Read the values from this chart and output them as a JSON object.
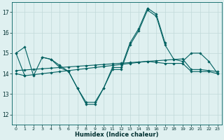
{
  "x": [
    0,
    1,
    2,
    3,
    4,
    5,
    6,
    7,
    8,
    9,
    10,
    11,
    12,
    13,
    14,
    15,
    16,
    17,
    18,
    19,
    20,
    21,
    22,
    23
  ],
  "line1": [
    15.0,
    15.3,
    13.9,
    14.8,
    14.7,
    14.4,
    14.1,
    13.3,
    12.6,
    12.6,
    13.3,
    14.3,
    14.3,
    15.5,
    16.2,
    17.2,
    16.9,
    15.5,
    null,
    null,
    null,
    null,
    null,
    null
  ],
  "line2": [
    15.0,
    13.9,
    null,
    14.8,
    14.7,
    14.3,
    14.1,
    13.3,
    12.5,
    12.5,
    13.3,
    14.2,
    14.2,
    15.4,
    16.1,
    17.1,
    16.8,
    15.4,
    14.7,
    14.6,
    15.0,
    15.0,
    14.6,
    14.0
  ],
  "line3": [
    14.0,
    13.9,
    13.95,
    14.0,
    14.05,
    14.1,
    14.15,
    14.2,
    14.25,
    14.3,
    14.35,
    14.4,
    14.45,
    14.5,
    14.55,
    14.6,
    14.55,
    14.5,
    14.5,
    14.5,
    14.1,
    14.1,
    14.1,
    14.0
  ],
  "line4": [
    14.15,
    14.18,
    14.21,
    14.24,
    14.27,
    14.3,
    14.33,
    14.36,
    14.39,
    14.42,
    14.45,
    14.48,
    14.51,
    14.54,
    14.57,
    14.6,
    14.63,
    14.66,
    14.69,
    14.72,
    14.2,
    14.2,
    14.15,
    14.1
  ],
  "bg_color": "#dff0f0",
  "grid_color": "#c0d8d8",
  "line_color": "#006060",
  "xlabel": "Humidex (Indice chaleur)",
  "ylim": [
    11.5,
    17.5
  ],
  "xlim": [
    -0.5,
    23.5
  ],
  "yticks": [
    12,
    13,
    14,
    15,
    16,
    17
  ],
  "xticks": [
    0,
    1,
    2,
    3,
    4,
    5,
    6,
    7,
    8,
    9,
    10,
    11,
    12,
    13,
    14,
    15,
    16,
    17,
    18,
    19,
    20,
    21,
    22,
    23
  ]
}
